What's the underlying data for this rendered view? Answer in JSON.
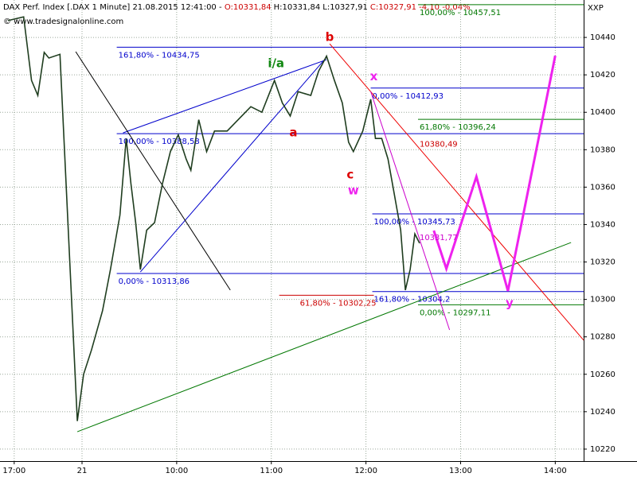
{
  "chart_data": {
    "type": "line",
    "title_parts": [
      {
        "text": "DAX Perf. Index [.DAX  1 Minute] 21.08.2015 12:41:00 -",
        "color": "#000000"
      },
      {
        "text": "O:10331,84",
        "color": "#cc0000"
      },
      {
        "text": "H:10331,84",
        "color": "#000000"
      },
      {
        "text": "L:10327,91",
        "color": "#000000"
      },
      {
        "text": "C:10327,91 -4,10 -0,04%",
        "color": "#cc0000"
      }
    ],
    "subtitle": "© www.tradesignalonline.com",
    "axis_label": "XXP",
    "color": "#1f3d1f",
    "x": [
      -47,
      -37,
      -32,
      -28,
      -24,
      -21,
      -14,
      -3,
      1,
      6,
      13,
      18,
      24,
      28,
      31,
      34,
      37,
      41,
      46,
      51,
      56,
      61,
      66,
      69,
      74,
      79,
      84,
      92,
      99,
      107,
      114,
      122,
      127,
      132,
      137,
      145,
      150,
      155,
      160,
      165,
      169,
      172,
      178,
      183,
      186,
      190,
      194,
      198,
      202,
      205,
      208,
      211,
      214
    ],
    "values": [
      10449,
      10451,
      10417,
      10409,
      10432,
      10429,
      10431,
      10235,
      10260,
      10273,
      10294,
      10316,
      10345,
      10386,
      10362,
      10341,
      10316,
      10337,
      10341,
      10362,
      10379,
      10388,
      10375,
      10369,
      10396,
      10379,
      10390,
      10390,
      10396,
      10403,
      10400,
      10417,
      10405,
      10398,
      10411,
      10409,
      10422,
      10430,
      10417,
      10405,
      10384,
      10379,
      10390,
      10407,
      10386,
      10386,
      10375,
      10356,
      10337,
      10305,
      10316,
      10335,
      10330
    ],
    "xlim": [
      -52,
      318
    ],
    "ylim": [
      10213.6,
      10460
    ],
    "yticks": [
      10220,
      10240,
      10260,
      10280,
      10300,
      10320,
      10340,
      10360,
      10380,
      10400,
      10420,
      10440
    ],
    "xticks": [
      {
        "value": -43,
        "label": "17:00"
      },
      {
        "value": 0,
        "label": "21"
      },
      {
        "value": 60,
        "label": "10:00"
      },
      {
        "value": 120,
        "label": "11:00"
      },
      {
        "value": 180,
        "label": "12:00"
      },
      {
        "value": 240,
        "label": "13:00"
      },
      {
        "value": 300,
        "label": "14:00"
      }
    ],
    "grid": true,
    "levels": [
      {
        "label": "161,80% - 10434,75",
        "value": 10434.75,
        "x0": 22,
        "color": "#0000cc"
      },
      {
        "label": "100,00% - 10388,58",
        "value": 10388.58,
        "x0": 22,
        "color": "#0000cc"
      },
      {
        "label": "0,00% - 10313,86",
        "value": 10313.86,
        "x0": 22,
        "color": "#0000cc"
      },
      {
        "label": "0,00% - 10412,93",
        "value": 10412.93,
        "x0": 183,
        "color": "#0000cc"
      },
      {
        "label": "100,00% - 10345,73",
        "value": 10345.73,
        "x0": 184,
        "color": "#0000cc"
      },
      {
        "label": "161,80% - 10304,2",
        "value": 10304.2,
        "x0": 184,
        "color": "#0000cc"
      },
      {
        "label": "100,00% - 10457,51",
        "value": 10457.51,
        "x0": 213,
        "color": "#007700"
      },
      {
        "label": "61,80% - 10396,24",
        "value": 10396.24,
        "x0": 213,
        "color": "#007700"
      },
      {
        "label": "0,00% - 10297,11",
        "value": 10297.11,
        "x0": 213,
        "color": "#007700"
      },
      {
        "label": "61,80% - 10302,25",
        "value": 10302.25,
        "x0": 125,
        "x1": 185,
        "color": "#cc0000"
      }
    ],
    "trendlines": [
      {
        "x": [
          -3,
          310
        ],
        "y": [
          10229.3,
          10330.4
        ],
        "color": "#007700"
      },
      {
        "x": [
          26,
          155
        ],
        "y": [
          10389.0,
          10428.1
        ],
        "color": "#0000cc"
      },
      {
        "x": [
          37,
          155
        ],
        "y": [
          10314.7,
          10429.4
        ],
        "color": "#0000cc"
      },
      {
        "x": [
          -4,
          94
        ],
        "y": [
          10432.4,
          10305.0
        ],
        "color": "#000000"
      },
      {
        "x": [
          157,
          318
        ],
        "y": [
          10436.6,
          10278.2
        ],
        "color": "#ee0000"
      },
      {
        "x": [
          183,
          233
        ],
        "y": [
          10411.1,
          10283.7
        ],
        "color": "#cc00cc"
      }
    ],
    "projection": {
      "color": "#ee22ee",
      "x": [
        223,
        231,
        250,
        270,
        300
      ],
      "y": [
        10336.8,
        10316.4,
        10365.6,
        10304.5,
        10430.2
      ]
    },
    "wave_labels": [
      {
        "text": "b",
        "x": 157,
        "y": 10440,
        "color": "#dd0000"
      },
      {
        "text": "i/a",
        "x": 123,
        "y": 10426,
        "color": "#118811"
      },
      {
        "text": "a",
        "x": 134,
        "y": 10389,
        "color": "#dd0000"
      },
      {
        "text": "x",
        "x": 185,
        "y": 10419,
        "color": "#ee22ee"
      },
      {
        "text": "c",
        "x": 170,
        "y": 10366.5,
        "color": "#dd0000"
      },
      {
        "text": "w",
        "x": 172,
        "y": 10358,
        "color": "#ee22ee"
      },
      {
        "text": "y",
        "x": 271,
        "y": 10298,
        "color": "#ee22ee"
      }
    ],
    "price_labels": [
      {
        "text": "10380,49",
        "x": 214,
        "y": 10383,
        "color": "#cc0000"
      },
      {
        "text": "10331,77",
        "x": 214,
        "y": 10333,
        "color": "#cc00cc"
      }
    ]
  }
}
